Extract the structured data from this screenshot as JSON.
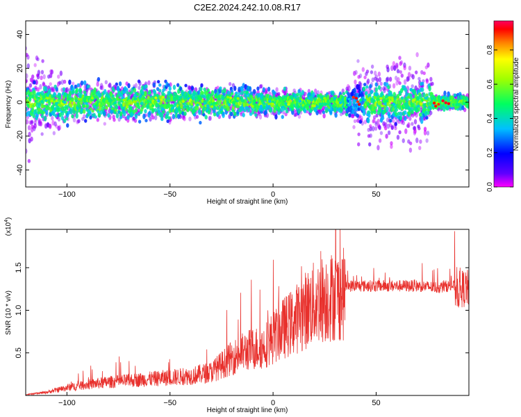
{
  "title": "C2E2.2024.242.10.08.R17",
  "chart_data": [
    {
      "type": "heatmap",
      "xlabel": "Height of straight line (km)",
      "ylabel": "Frequency (Hz)",
      "xlim": [
        -120,
        95
      ],
      "ylim": [
        -50,
        48
      ],
      "xticks": [
        -100,
        -50,
        0,
        50
      ],
      "yticks": [
        -40,
        -20,
        0,
        20,
        40
      ],
      "colorbar": {
        "label": "Normalized spectral amplitude",
        "range": [
          0,
          0.97
        ],
        "ticks": [
          0,
          0.2,
          0.4,
          0.6,
          0.8
        ],
        "colormap": [
          "#ff00ff",
          "#6000ff",
          "#0000ff",
          "#00c0ff",
          "#00ff60",
          "#a0ff00",
          "#ffff00",
          "#ff8000",
          "#ff0000",
          "#ff0060"
        ]
      },
      "spread_profile": [
        {
          "x": -120,
          "half_width": 48
        },
        {
          "x": -112,
          "half_width": 30
        },
        {
          "x": -100,
          "half_width": 15
        },
        {
          "x": -50,
          "half_width": 13
        },
        {
          "x": 0,
          "half_width": 10
        },
        {
          "x": 35,
          "half_width": 8
        },
        {
          "x": 42,
          "half_width": 30
        },
        {
          "x": 75,
          "half_width": 30
        },
        {
          "x": 78,
          "half_width": 6
        },
        {
          "x": 95,
          "half_width": 5
        }
      ]
    },
    {
      "type": "line",
      "xlabel": "Height of straight line (km)",
      "ylabel": "SNR (10 * v/v)",
      "multiplier": "(x10⁴)",
      "xlim": [
        -120,
        95
      ],
      "ylim": [
        0,
        1.95
      ],
      "xticks": [
        -100,
        -50,
        0,
        50
      ],
      "yticks": [
        0.5,
        1.0,
        1.5
      ],
      "color": "#e8302c",
      "series": [
        {
          "x": [
            -120,
            -110,
            -100,
            -90,
            -80,
            -70,
            -60,
            -50,
            -40,
            -30,
            -20,
            -15,
            -10,
            -5,
            0,
            5,
            10,
            15,
            20,
            25,
            30,
            35,
            40,
            50,
            60,
            70,
            80,
            85,
            88,
            90,
            92,
            95
          ],
          "values": [
            0.01,
            0.04,
            0.1,
            0.14,
            0.17,
            0.19,
            0.21,
            0.23,
            0.25,
            0.3,
            0.48,
            0.55,
            0.6,
            0.62,
            0.74,
            0.86,
            0.95,
            1.08,
            1.18,
            1.25,
            1.28,
            1.3,
            1.3,
            1.3,
            1.3,
            1.3,
            1.28,
            1.3,
            1.3,
            1.28,
            1.3,
            1.3
          ]
        }
      ]
    }
  ]
}
